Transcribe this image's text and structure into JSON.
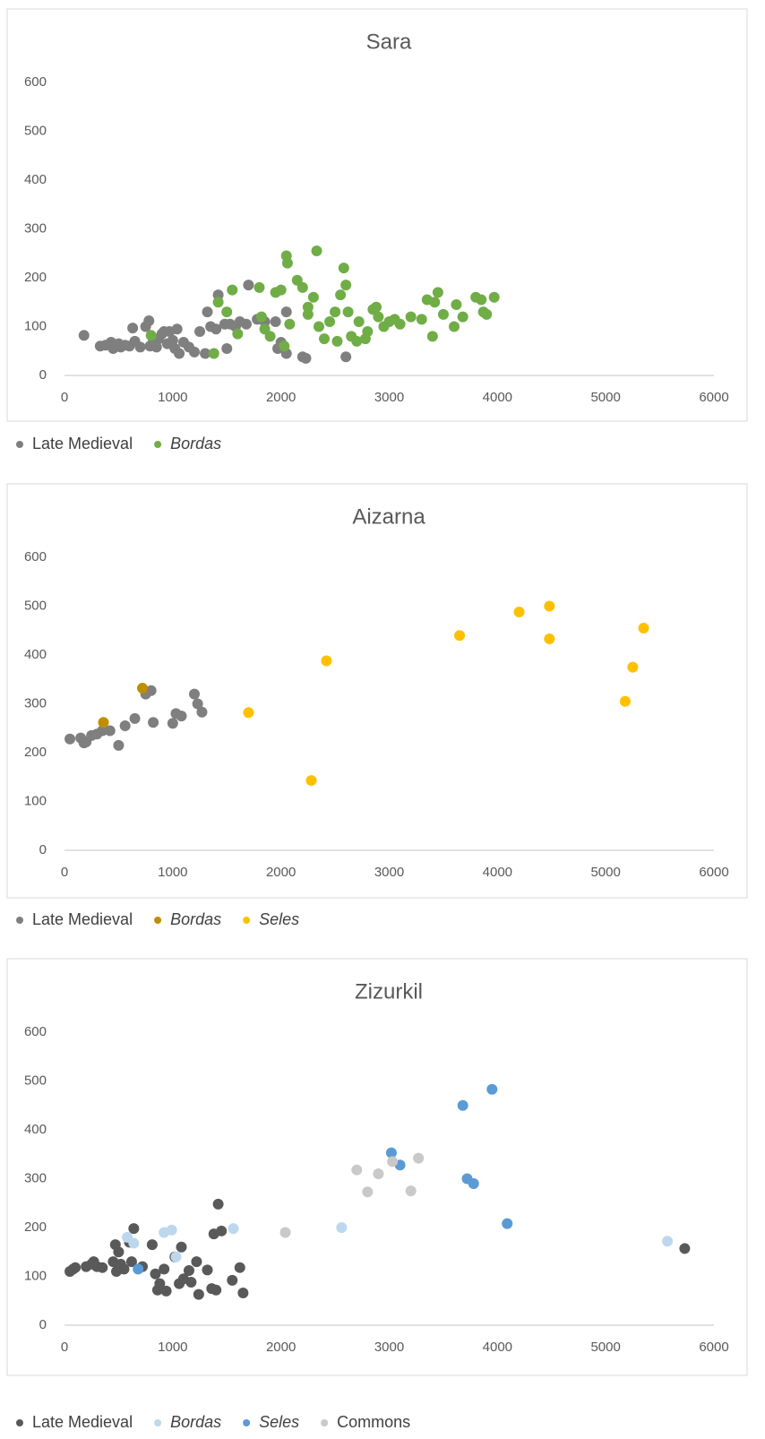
{
  "chart_data": [
    {
      "type": "scatter",
      "title": "Sara",
      "xlim": [
        0,
        6000
      ],
      "ylim": [
        0,
        600
      ],
      "xticks": [
        0,
        1000,
        2000,
        3000,
        4000,
        5000,
        6000
      ],
      "yticks": [
        0,
        100,
        200,
        300,
        400,
        500,
        600
      ],
      "grid": false,
      "legend": "bottom",
      "series": [
        {
          "name": "Late Medieval",
          "color": "#7f7f7f",
          "italic": false,
          "x": [
            180,
            330,
            380,
            430,
            450,
            500,
            520,
            560,
            600,
            630,
            650,
            700,
            750,
            780,
            790,
            820,
            850,
            870,
            900,
            920,
            950,
            970,
            1000,
            1020,
            1040,
            1060,
            1100,
            1150,
            1200,
            1250,
            1300,
            1320,
            1350,
            1400,
            1420,
            1480,
            1500,
            1530,
            1580,
            1620,
            1680,
            1700,
            1780,
            1850,
            1950,
            1970,
            2000,
            2050,
            2050,
            2200,
            2230,
            2600
          ],
          "values": [
            82,
            60,
            62,
            68,
            55,
            65,
            58,
            62,
            60,
            97,
            70,
            58,
            100,
            112,
            60,
            70,
            58,
            75,
            85,
            90,
            65,
            90,
            72,
            55,
            95,
            45,
            68,
            58,
            48,
            90,
            45,
            130,
            100,
            95,
            165,
            105,
            55,
            105,
            100,
            110,
            105,
            185,
            115,
            110,
            110,
            55,
            68,
            45,
            130,
            38,
            35,
            38
          ]
        },
        {
          "name": "Bordas",
          "color": "#70ad47",
          "italic": true,
          "x": [
            800,
            1380,
            1420,
            1500,
            1550,
            1600,
            1800,
            1820,
            1850,
            1900,
            1950,
            2000,
            2030,
            2050,
            2060,
            2080,
            2150,
            2200,
            2250,
            2250,
            2300,
            2330,
            2350,
            2400,
            2450,
            2500,
            2520,
            2550,
            2580,
            2600,
            2620,
            2650,
            2700,
            2720,
            2780,
            2800,
            2850,
            2880,
            2900,
            2950,
            3000,
            3050,
            3100,
            3200,
            3300,
            3350,
            3400,
            3420,
            3450,
            3500,
            3600,
            3620,
            3680,
            3800,
            3850,
            3870,
            3900,
            3970
          ],
          "values": [
            82,
            45,
            150,
            130,
            175,
            85,
            180,
            120,
            95,
            80,
            170,
            175,
            60,
            245,
            230,
            105,
            195,
            180,
            140,
            125,
            160,
            255,
            100,
            75,
            110,
            130,
            70,
            165,
            220,
            185,
            130,
            80,
            70,
            110,
            75,
            90,
            135,
            140,
            120,
            100,
            110,
            115,
            105,
            120,
            115,
            155,
            80,
            150,
            170,
            125,
            100,
            145,
            120,
            160,
            155,
            130,
            125,
            160
          ]
        }
      ]
    },
    {
      "type": "scatter",
      "title": "Aizarna",
      "xlim": [
        0,
        6000
      ],
      "ylim": [
        0,
        600
      ],
      "xticks": [
        0,
        1000,
        2000,
        3000,
        4000,
        5000,
        6000
      ],
      "yticks": [
        0,
        100,
        200,
        300,
        400,
        500,
        600
      ],
      "grid": false,
      "legend": "bottom",
      "series": [
        {
          "name": "Late Medieval",
          "color": "#7f7f7f",
          "italic": false,
          "x": [
            50,
            150,
            180,
            200,
            250,
            300,
            350,
            420,
            500,
            560,
            650,
            750,
            800,
            820,
            1000,
            1030,
            1080,
            1200,
            1230,
            1270
          ],
          "values": [
            228,
            230,
            220,
            222,
            235,
            238,
            245,
            245,
            215,
            255,
            270,
            320,
            327,
            262,
            260,
            280,
            275,
            320,
            300,
            283
          ]
        },
        {
          "name": "Bordas",
          "color": "#bf8f00",
          "italic": true,
          "x": [
            360,
            720
          ],
          "values": [
            262,
            332
          ]
        },
        {
          "name": "Seles",
          "color": "#ffc000",
          "italic": true,
          "x": [
            1700,
            2280,
            2420,
            3650,
            4200,
            4480,
            4480,
            5180,
            5250,
            5350
          ],
          "values": [
            282,
            143,
            388,
            440,
            488,
            500,
            433,
            305,
            375,
            455
          ]
        }
      ]
    },
    {
      "type": "scatter",
      "title": "Zizurkil",
      "xlim": [
        0,
        6000
      ],
      "ylim": [
        0,
        600
      ],
      "xticks": [
        0,
        1000,
        2000,
        3000,
        4000,
        5000,
        6000
      ],
      "yticks": [
        0,
        100,
        200,
        300,
        400,
        500,
        600
      ],
      "grid": false,
      "legend": "bottom",
      "series": [
        {
          "name": "Late Medieval",
          "color": "#595959",
          "italic": false,
          "x": [
            50,
            80,
            100,
            200,
            250,
            270,
            300,
            350,
            450,
            470,
            480,
            500,
            520,
            550,
            600,
            620,
            640,
            720,
            810,
            840,
            860,
            880,
            920,
            940,
            1020,
            1060,
            1080,
            1100,
            1150,
            1170,
            1220,
            1240,
            1320,
            1360,
            1380,
            1400,
            1420,
            1450,
            1550,
            1620,
            1650,
            5730
          ],
          "values": [
            110,
            115,
            118,
            120,
            125,
            130,
            120,
            118,
            130,
            165,
            110,
            150,
            125,
            115,
            170,
            130,
            198,
            120,
            165,
            105,
            72,
            85,
            115,
            70,
            140,
            85,
            160,
            95,
            112,
            88,
            130,
            63,
            113,
            75,
            187,
            72,
            248,
            193,
            92,
            118,
            66,
            157
          ]
        },
        {
          "name": "Bordas",
          "color": "#bdd7ee",
          "italic": true,
          "x": [
            580,
            640,
            920,
            990,
            1030,
            1560,
            2560,
            5570
          ],
          "values": [
            180,
            168,
            190,
            195,
            140,
            198,
            200,
            172
          ]
        },
        {
          "name": "Seles",
          "color": "#5b9bd5",
          "italic": true,
          "x": [
            680,
            3020,
            3100,
            3680,
            3720,
            3780,
            3950,
            4090
          ],
          "values": [
            115,
            353,
            328,
            450,
            300,
            290,
            483,
            208
          ]
        },
        {
          "name": "Commons",
          "color": "#c9c9c9",
          "italic": false,
          "x": [
            2040,
            2700,
            2800,
            2900,
            3030,
            3200,
            3270
          ],
          "values": [
            190,
            318,
            273,
            310,
            335,
            275,
            342
          ]
        }
      ]
    }
  ]
}
